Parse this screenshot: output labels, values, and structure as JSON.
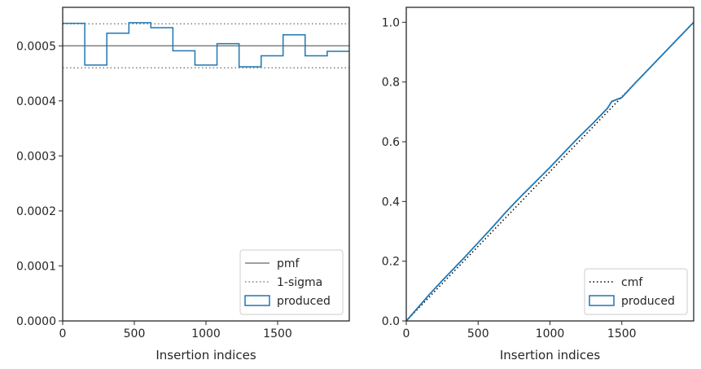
{
  "chart_data": [
    {
      "type": "histogram-step",
      "xlabel": "Insertion indices",
      "ylabel": "",
      "xlim": [
        0,
        2000
      ],
      "ylim": [
        0,
        0.00057
      ],
      "xticks": [
        0,
        500,
        1000,
        1500
      ],
      "xtick_labels": [
        "0",
        "500",
        "1000",
        "1500"
      ],
      "yticks": [
        0,
        0.0001,
        0.0002,
        0.0003,
        0.0004,
        0.0005
      ],
      "ytick_labels": [
        "0.0000",
        "0.0001",
        "0.0002",
        "0.0003",
        "0.0004",
        "0.0005"
      ],
      "pmf": 0.0005,
      "sigma_band": [
        0.00046,
        0.00054
      ],
      "bin_edges": [
        0,
        154,
        308,
        462,
        615,
        769,
        923,
        1077,
        1231,
        1385,
        1538,
        1692,
        1846,
        2000
      ],
      "bin_values": [
        0.000541,
        0.000465,
        0.000523,
        0.000542,
        0.000533,
        0.000491,
        0.000465,
        0.000504,
        0.000462,
        0.000482,
        0.00052,
        0.000482,
        0.00049
      ],
      "legend": {
        "position": "lower right",
        "entries": [
          {
            "label": "pmf",
            "style": "solid",
            "color": "#808080"
          },
          {
            "label": "1-sigma",
            "style": "dotted",
            "color": "#808080"
          },
          {
            "label": "produced",
            "style": "box",
            "color": "#1f77b4"
          }
        ]
      }
    },
    {
      "type": "line",
      "xlabel": "Insertion indices",
      "ylabel": "",
      "xlim": [
        0,
        2000
      ],
      "ylim": [
        0,
        1.05
      ],
      "xticks": [
        0,
        500,
        1000,
        1500
      ],
      "xtick_labels": [
        "0",
        "500",
        "1000",
        "1500"
      ],
      "yticks": [
        0,
        0.2,
        0.4,
        0.6,
        0.8,
        1.0
      ],
      "ytick_labels": [
        "0.0",
        "0.2",
        "0.4",
        "0.6",
        "0.8",
        "1.0"
      ],
      "series": [
        {
          "name": "cmf",
          "style": "dotted",
          "color": "#000000",
          "x": [
            0,
            2000
          ],
          "y": [
            0,
            1.0
          ]
        },
        {
          "name": "produced",
          "style": "step",
          "color": "#1f77b4",
          "x": [
            0,
            100,
            150,
            250,
            400,
            500,
            600,
            700,
            800,
            900,
            1000,
            1100,
            1200,
            1300,
            1400,
            1430,
            1500,
            1600,
            1700,
            1800,
            1900,
            2000
          ],
          "y": [
            0,
            0.055,
            0.083,
            0.135,
            0.21,
            0.262,
            0.314,
            0.368,
            0.418,
            0.466,
            0.514,
            0.565,
            0.615,
            0.662,
            0.712,
            0.735,
            0.748,
            0.8,
            0.85,
            0.9,
            0.95,
            1.0
          ]
        }
      ],
      "legend": {
        "position": "lower right",
        "entries": [
          {
            "label": "cmf",
            "style": "dotted",
            "color": "#000000"
          },
          {
            "label": "produced",
            "style": "box",
            "color": "#1f77b4"
          }
        ]
      }
    }
  ]
}
